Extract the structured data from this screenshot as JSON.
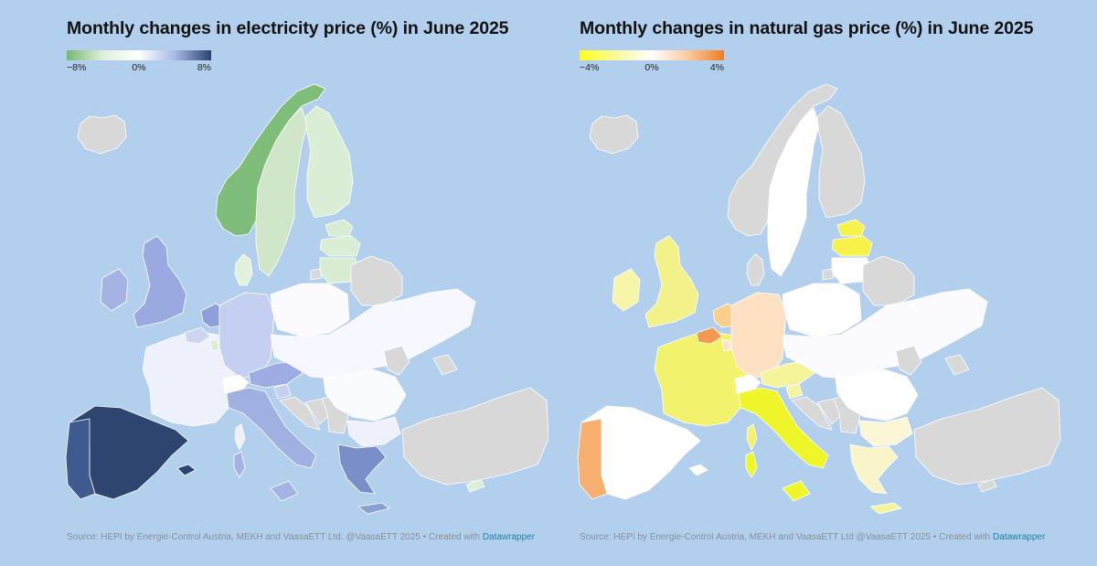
{
  "colors": {
    "sea": "#b2d0ee",
    "no_data": "#d8d8d8",
    "elec_scale": [
      "#76b971",
      "#dff0da",
      "#ffffff",
      "#a8b8e6",
      "#2a4370"
    ],
    "gas_scale": [
      "#ffff1e",
      "#f9f99a",
      "#ffffff",
      "#fbcb9d",
      "#ef7d24"
    ]
  },
  "electricity": {
    "title": "Monthly changes in electricity price (%) in June 2025",
    "legend": {
      "min": "−8%",
      "mid": "0%",
      "max": "8%"
    },
    "source_prefix": "Source: HEPI by Energie-Control Austria, MEKH and VaasaETT Ltd. @VaasaETT 2025 • Created with",
    "source_link": "Datawrapper",
    "regions": {
      "norway": "#7fbd7b",
      "sweden": "#cfe6c8",
      "finland": "#d9eed4",
      "denmark": "#e2f1dd",
      "estonia": "#d7ecd1",
      "latvia": "#d9eed4",
      "lithuania": "#d7ecd1",
      "iceland": "#d8d8d8",
      "ireland": "#a4b3e2",
      "uk": "#9aaae0",
      "france": "#eef0fb",
      "belgium": "#ccd6f1",
      "netherlands": "#8e9fdb",
      "luxembourg": "#dcecd5",
      "germany": "#c5cff1",
      "switzerland": "#ffffff",
      "austria": "#9dade3",
      "italy": "#9fb0e1",
      "sicily": "#a3b3e3",
      "sardinia": "#a4b3e2",
      "corsica": "#eef0fb",
      "spain": "#2e4570",
      "portugal": "#3f5a8e",
      "balearic": "#2e4570",
      "poland": "#fbfbff",
      "central_east": "#f7f8ff",
      "romania": "#fafbff",
      "bulgaria": "#eef0fb",
      "slovenia": "#c5cff1",
      "croatia": "#d8d8d8",
      "serbia": "#d8d8d8",
      "bosnia": "#d8d8d8",
      "greece": "#7a8fc9",
      "crete": "#8c9fd3",
      "cyprus": "#dcefd6",
      "turkey": "#d8d8d8",
      "belarus": "#d8d8d8",
      "ukraine_east": "#d8d8d8",
      "russia_kal": "#d8d8d8",
      "moldova": "#d8d8d8"
    }
  },
  "gas": {
    "title": "Monthly changes in natural gas price (%) in June 2025",
    "legend": {
      "min": "−4%",
      "mid": "0%",
      "max": "4%"
    },
    "source_prefix": "Source: HEPI by Energie-Control Austria, MEKH and VaasaETT Ltd @VaasaETT 2025 • Created with",
    "source_link": "Datawrapper",
    "regions": {
      "norway": "#d8d8d8",
      "sweden": "#ffffff",
      "finland": "#d8d8d8",
      "denmark": "#d8d8d8",
      "estonia": "#f7f24a",
      "latvia": "#f7f24a",
      "lithuania": "#ffffff",
      "iceland": "#d8d8d8",
      "ireland": "#f6f5a8",
      "uk": "#f3f28a",
      "france": "#f2f26c",
      "belgium": "#f39a52",
      "netherlands": "#fbce8a",
      "luxembourg": "#fbe7d0",
      "germany": "#fde1c2",
      "switzerland": "#ffffff",
      "austria": "#f6f49a",
      "italy": "#eef62a",
      "sicily": "#eef62a",
      "sardinia": "#eef62a",
      "corsica": "#f2f26c",
      "spain": "#ffffff",
      "portugal": "#f8b070",
      "balearic": "#ffffff",
      "poland": "#ffffff",
      "central_east": "#fbfbff",
      "romania": "#ffffff",
      "bulgaria": "#fbf7d6",
      "slovenia": "#f6f49a",
      "croatia": "#d8d8d8",
      "serbia": "#d8d8d8",
      "bosnia": "#d8d8d8",
      "greece": "#f9f5c8",
      "crete": "#f6f49a",
      "cyprus": "#d8d8d8",
      "turkey": "#d8d8d8",
      "belarus": "#d8d8d8",
      "ukraine_east": "#d8d8d8",
      "russia_kal": "#d8d8d8",
      "moldova": "#d8d8d8"
    }
  }
}
